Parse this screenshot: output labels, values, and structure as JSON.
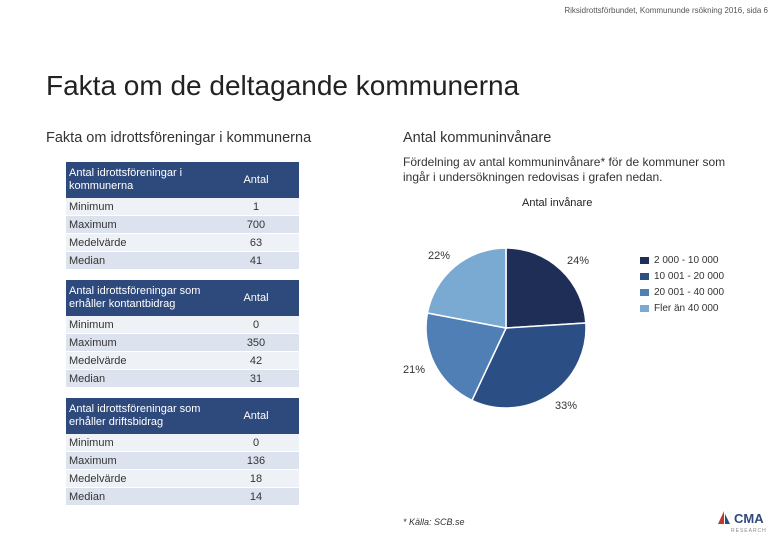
{
  "header": {
    "text": "Riksidrottsförbundet, Kommununde rsökning 2016, sida 6"
  },
  "title": "Fakta om de deltagande kommunerna",
  "left_section": {
    "heading": "Fakta om idrottsföreningar i kommunerna",
    "tables": [
      {
        "header": "Antal idrottsföreningar i kommunerna",
        "col": "Antal",
        "rows": [
          {
            "label": "Minimum",
            "value": "1"
          },
          {
            "label": "Maximum",
            "value": "700"
          },
          {
            "label": "Medelvärde",
            "value": "63"
          },
          {
            "label": "Median",
            "value": "41"
          }
        ]
      },
      {
        "header": "Antal idrottsföreningar som erhåller kontantbidrag",
        "col": "Antal",
        "rows": [
          {
            "label": "Minimum",
            "value": "0"
          },
          {
            "label": "Maximum",
            "value": "350"
          },
          {
            "label": "Medelvärde",
            "value": "42"
          },
          {
            "label": "Median",
            "value": "31"
          }
        ]
      },
      {
        "header": "Antal idrottsföreningar som erhåller driftsbidrag",
        "col": "Antal",
        "rows": [
          {
            "label": "Minimum",
            "value": "0"
          },
          {
            "label": "Maximum",
            "value": "136"
          },
          {
            "label": "Medelvärde",
            "value": "18"
          },
          {
            "label": "Median",
            "value": "14"
          }
        ]
      }
    ]
  },
  "right_section": {
    "heading": "Antal kommuninvånare",
    "description": "Fördelning av antal kommuninvånare* för de kommuner som ingår i undersökningen redovisas i grafen nedan.",
    "source": "* Källa: SCB.se"
  },
  "chart_data": {
    "type": "pie",
    "title": "Antal invånare",
    "categories": [
      "2 000 - 10 000",
      "10 001 - 20 000",
      "20 001 - 40 000",
      "Fler än 40 000"
    ],
    "values": [
      24,
      33,
      21,
      22
    ],
    "labels": [
      "24%",
      "33%",
      "21%",
      "22%"
    ],
    "colors": [
      "#1f2e57",
      "#2b4f85",
      "#4f7fb5",
      "#7aa9d2"
    ],
    "legend": "right"
  },
  "logo": {
    "text": "CMA",
    "sub": "RESEARCH"
  }
}
